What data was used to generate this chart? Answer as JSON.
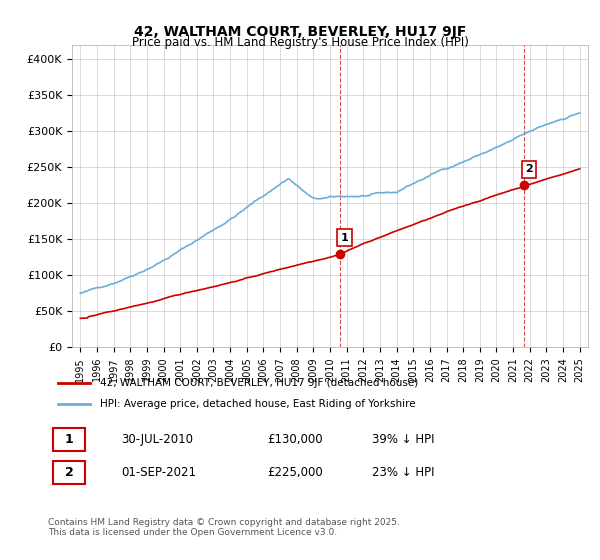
{
  "title": "42, WALTHAM COURT, BEVERLEY, HU17 9JF",
  "subtitle": "Price paid vs. HM Land Registry's House Price Index (HPI)",
  "ylim": [
    0,
    420000
  ],
  "yticks": [
    0,
    50000,
    100000,
    150000,
    200000,
    250000,
    300000,
    350000,
    400000
  ],
  "ytick_labels": [
    "£0",
    "£50K",
    "£100K",
    "£150K",
    "£200K",
    "£250K",
    "£300K",
    "£350K",
    "£400K"
  ],
  "x_start_year": 1995,
  "x_end_year": 2025,
  "hpi_color": "#6baed6",
  "price_color": "#cc0000",
  "marker1_year": 2010.58,
  "marker1_price": 130000,
  "marker1_label": "1",
  "marker2_year": 2021.67,
  "marker2_price": 225000,
  "marker2_label": "2",
  "table_row1": [
    "1",
    "30-JUL-2010",
    "£130,000",
    "39% ↓ HPI"
  ],
  "table_row2": [
    "2",
    "01-SEP-2021",
    "£225,000",
    "23% ↓ HPI"
  ],
  "legend_line1": "42, WALTHAM COURT, BEVERLEY, HU17 9JF (detached house)",
  "legend_line2": "HPI: Average price, detached house, East Riding of Yorkshire",
  "footer": "Contains HM Land Registry data © Crown copyright and database right 2025.\nThis data is licensed under the Open Government Licence v3.0.",
  "background_color": "#ffffff",
  "grid_color": "#cccccc",
  "vline_color": "#cc0000"
}
